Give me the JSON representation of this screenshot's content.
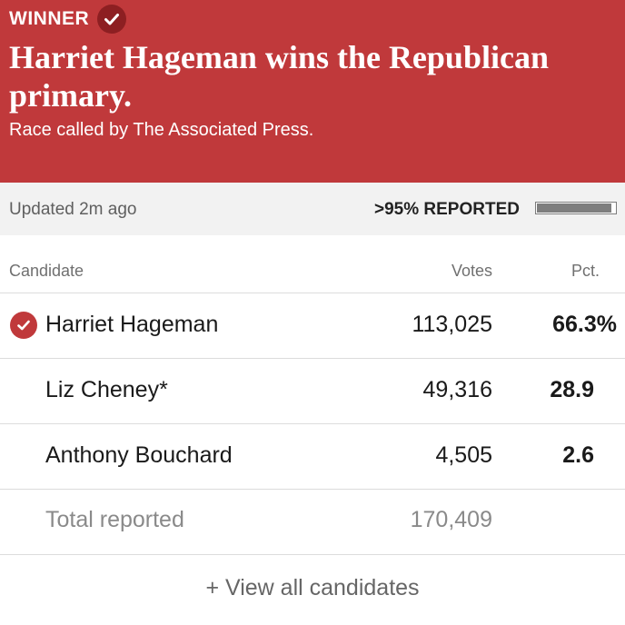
{
  "banner": {
    "winner_label": "WINNER",
    "headline": "Harriet Hageman wins the Republican primary.",
    "subline": "Race called by The Associated Press.",
    "color": "#c0393b"
  },
  "status": {
    "updated": "Updated 2m ago",
    "reported_label": ">95% REPORTED",
    "reported_fraction": 0.95
  },
  "table": {
    "headers": {
      "candidate": "Candidate",
      "votes": "Votes",
      "pct": "Pct."
    },
    "rows": [
      {
        "name": "Harriet Hageman",
        "votes": "113,025",
        "pct": "66.3%",
        "winner": true,
        "icon": "check-circle-icon"
      },
      {
        "name": "Liz Cheney*",
        "votes": "49,316",
        "pct": "28.9",
        "winner": false
      },
      {
        "name": "Anthony Bouchard",
        "votes": "4,505",
        "pct": "2.6",
        "winner": false
      }
    ],
    "total": {
      "label": "Total reported",
      "votes": "170,409"
    }
  },
  "view_all_label": "+ View all candidates"
}
